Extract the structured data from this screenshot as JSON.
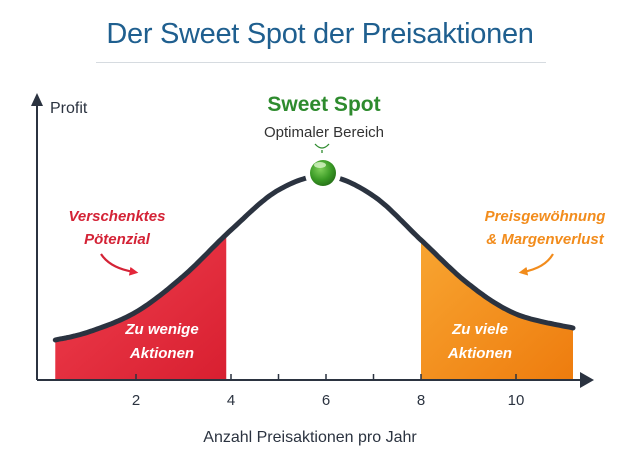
{
  "title": "Der Sweet Spot der Preisaktionen",
  "colors": {
    "title": "#1f5f8f",
    "curve": "#2b3340",
    "axis": "#2b3340",
    "red": "#e3263a",
    "orange": "#f28c1c",
    "green": "#2e8b2e"
  },
  "chart_data": {
    "type": "line",
    "title": "Der Sweet Spot der Preisaktionen",
    "xlabel": "Anzahl Preisaktionen pro Jahr",
    "ylabel": "Profit",
    "xlim": [
      0,
      11.8
    ],
    "ylim": [
      0,
      14
    ],
    "x_ticks": [
      2,
      4,
      6,
      8,
      10
    ],
    "x_minor_ticks": [
      5,
      7
    ],
    "series": [
      {
        "name": "Profit",
        "x": [
          0.3,
          1,
          2,
          3,
          4,
          5,
          6,
          7,
          8,
          9,
          10,
          11.2
        ],
        "y": [
          2.0,
          2.4,
          3.4,
          5.2,
          7.5,
          9.5,
          10.2,
          9.2,
          7.0,
          4.8,
          3.3,
          2.6
        ]
      }
    ],
    "regions": [
      {
        "name": "zu-wenige",
        "from": 0.3,
        "to": 3.9,
        "color": "#e3263a",
        "label": [
          "Zu wenige",
          "Aktionen"
        ]
      },
      {
        "name": "zu-viele",
        "from": 8,
        "to": 11.2,
        "color": "#f28c1c",
        "label": [
          "Zu viele",
          "Aktionen"
        ]
      }
    ],
    "annotations": {
      "sweet_spot": {
        "x": 5.9,
        "title": "Sweet Spot",
        "subtitle": "Optimaler Bereich"
      },
      "left": [
        "Verschenktes",
        "Pötenzial"
      ],
      "right": [
        "Preisgewöhnung",
        "& Margenverlust"
      ]
    }
  }
}
